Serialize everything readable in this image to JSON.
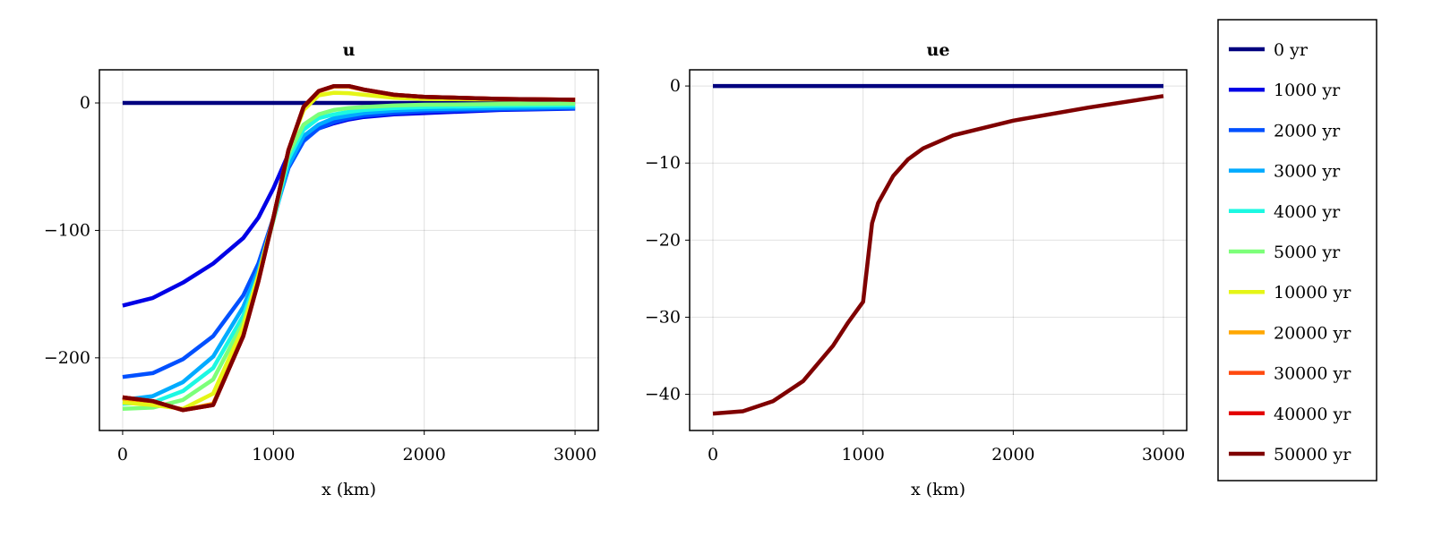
{
  "chart_data": [
    {
      "type": "line",
      "title": "u",
      "xlabel": "x (km)",
      "ylabel": "",
      "xlim": [
        -154,
        3154
      ],
      "ylim": [
        -257,
        26
      ],
      "xticks": [
        0,
        1000,
        2000,
        3000
      ],
      "xtick_labels": [
        "0",
        "1000",
        "2000",
        "3000"
      ],
      "yticks": [
        0,
        -100,
        -200
      ],
      "ytick_labels": [
        "0",
        "−100",
        "−200"
      ],
      "grid": true,
      "legend": "right (outside)",
      "x": [
        0,
        200,
        400,
        600,
        800,
        900,
        1000,
        1100,
        1200,
        1300,
        1400,
        1500,
        1600,
        1800,
        2000,
        2500,
        3000
      ],
      "series": [
        {
          "name": "0 yr",
          "color": "#00007f",
          "values": [
            0,
            0,
            0,
            0,
            0,
            0,
            0,
            0,
            0,
            0,
            0,
            0,
            0,
            0,
            0,
            0,
            0
          ]
        },
        {
          "name": "1000 yr",
          "color": "#0000e6",
          "values": [
            -159,
            -153,
            -141,
            -126,
            -106,
            -90,
            -67,
            -40,
            -28,
            -20,
            -16,
            -13,
            -11,
            -9,
            -8,
            -5.5,
            -4.5
          ]
        },
        {
          "name": "2000 yr",
          "color": "#0050ff",
          "values": [
            -215,
            -212,
            -201,
            -183,
            -151,
            -126,
            -90,
            -51,
            -30,
            -20,
            -15,
            -12,
            -10,
            -8,
            -6.6,
            -5,
            -4.3
          ]
        },
        {
          "name": "3000 yr",
          "color": "#00abff",
          "values": [
            -233,
            -230,
            -219,
            -199,
            -160,
            -131,
            -92,
            -49,
            -26,
            -17,
            -12,
            -10,
            -8,
            -6,
            -5,
            -3.9,
            -3.2
          ]
        },
        {
          "name": "4000 yr",
          "color": "#1cf8e2",
          "values": [
            -236,
            -235,
            -226,
            -208,
            -167,
            -135,
            -92,
            -44,
            -21,
            -12,
            -9,
            -7,
            -5.5,
            -4,
            -3.2,
            -2.3,
            -1.8
          ]
        },
        {
          "name": "5000 yr",
          "color": "#7cff79",
          "values": [
            -240,
            -239,
            -233,
            -217,
            -172,
            -137,
            -92,
            -40,
            -17,
            -9,
            -5.5,
            -4,
            -3.2,
            -2,
            -1.4,
            -0.9,
            -0.5
          ]
        },
        {
          "name": "10000 yr",
          "color": "#e5f516",
          "values": [
            -235,
            -237,
            -240,
            -228,
            -176,
            -135,
            -90,
            -37,
            -5.5,
            6,
            8,
            7.7,
            6.4,
            4,
            3.2,
            2.7,
            2.7
          ]
        },
        {
          "name": "20000 yr",
          "color": "#ffa700",
          "values": [
            -232,
            -234,
            -241,
            -236,
            -182,
            -139,
            -90,
            -37,
            -3.5,
            9,
            12.8,
            12.8,
            10.2,
            6.3,
            4.7,
            3.1,
            2.5
          ]
        },
        {
          "name": "30000 yr",
          "color": "#ff4a0f",
          "values": [
            -231,
            -234,
            -241,
            -237,
            -183,
            -140,
            -90,
            -37,
            -3,
            9.3,
            13.2,
            13.2,
            10.5,
            6.4,
            4.8,
            3.2,
            2.5
          ]
        },
        {
          "name": "40000 yr",
          "color": "#e30000",
          "values": [
            -231,
            -234,
            -241,
            -237,
            -183,
            -140,
            -90,
            -37,
            -3,
            9.3,
            13.2,
            13.2,
            10.5,
            6.4,
            4.8,
            3.2,
            2.5
          ]
        },
        {
          "name": "50000 yr",
          "color": "#7f0000",
          "values": [
            -231,
            -234,
            -241,
            -237,
            -183,
            -140,
            -90,
            -37,
            -3,
            9.3,
            13.2,
            13.2,
            10.5,
            6.4,
            4.8,
            3.2,
            2.5
          ]
        }
      ]
    },
    {
      "type": "line",
      "title": "ue",
      "xlabel": "x (km)",
      "ylabel": "",
      "xlim": [
        -155,
        3155
      ],
      "ylim": [
        -44.7,
        2.1
      ],
      "xticks": [
        0,
        1000,
        2000,
        3000
      ],
      "xtick_labels": [
        "0",
        "1000",
        "2000",
        "3000"
      ],
      "yticks": [
        0,
        -10,
        -20,
        -30,
        -40
      ],
      "ytick_labels": [
        "0",
        "−10",
        "−20",
        "−30",
        "−40"
      ],
      "grid": true,
      "x": [
        0,
        200,
        400,
        600,
        800,
        900,
        1000,
        1060,
        1100,
        1200,
        1300,
        1400,
        1600,
        2000,
        2500,
        3000
      ],
      "series": [
        {
          "name": "0 yr",
          "color": "#00007f",
          "values": [
            0,
            0,
            0,
            0,
            0,
            0,
            0,
            0,
            0,
            0,
            0,
            0,
            0,
            0,
            0,
            0
          ]
        },
        {
          "name": "50000 yr",
          "color": "#7f0000",
          "values": [
            -42.5,
            -42.2,
            -40.9,
            -38.3,
            -33.7,
            -30.7,
            -28,
            -17.8,
            -15.2,
            -11.7,
            -9.5,
            -8.1,
            -6.4,
            -4.5,
            -2.8,
            -1.3
          ]
        }
      ]
    }
  ],
  "legend": {
    "entries": [
      {
        "label": "0 yr",
        "color": "#00007f"
      },
      {
        "label": "1000 yr",
        "color": "#0000e6"
      },
      {
        "label": "2000 yr",
        "color": "#0050ff"
      },
      {
        "label": "3000 yr",
        "color": "#00abff"
      },
      {
        "label": "4000 yr",
        "color": "#1cf8e2"
      },
      {
        "label": "5000 yr",
        "color": "#7cff79"
      },
      {
        "label": "10000 yr",
        "color": "#e5f516"
      },
      {
        "label": "20000 yr",
        "color": "#ffa700"
      },
      {
        "label": "30000 yr",
        "color": "#ff4a0f"
      },
      {
        "label": "40000 yr",
        "color": "#e30000"
      },
      {
        "label": "50000 yr",
        "color": "#7f0000"
      }
    ]
  }
}
